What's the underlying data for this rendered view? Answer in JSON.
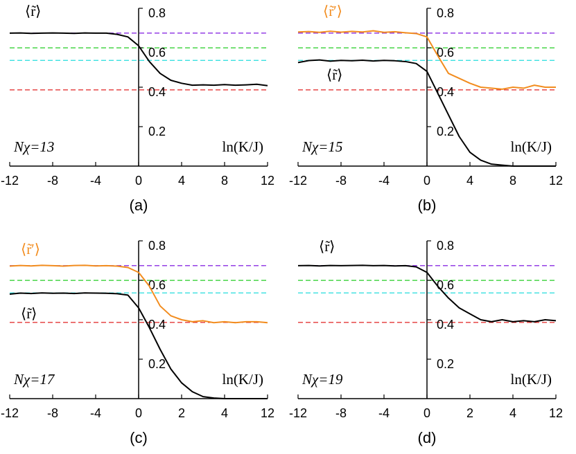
{
  "chart_data": [
    {
      "type": "line",
      "caption": "(a)",
      "annotation": "Nχ=13",
      "xlabel": "ln(K/J)",
      "xticks": [
        -12,
        -8,
        -4,
        0,
        4,
        8,
        12
      ],
      "xlim": [
        -12,
        12
      ],
      "ylim": [
        0,
        0.8
      ],
      "yticks": [
        0.2,
        0.4,
        0.6,
        0.8
      ],
      "reference_lines": [
        {
          "value": 0.6744,
          "color": "#8a2be2"
        },
        {
          "value": 0.5996,
          "color": "#22cc22"
        },
        {
          "value": 0.5359,
          "color": "#22dddd"
        },
        {
          "value": 0.3863,
          "color": "#e02020"
        }
      ],
      "x": [
        -12,
        -11,
        -10,
        -9,
        -8,
        -7,
        -6,
        -5,
        -4,
        -3,
        -2,
        -1,
        0,
        1,
        2,
        3,
        4,
        5,
        6,
        7,
        8,
        9,
        10,
        11,
        12
      ],
      "series": [
        {
          "name": "⟨r̃⟩",
          "color": "#000000",
          "values": [
            0.674,
            0.675,
            0.673,
            0.674,
            0.675,
            0.674,
            0.673,
            0.675,
            0.674,
            0.674,
            0.668,
            0.655,
            0.61,
            0.53,
            0.47,
            0.435,
            0.42,
            0.41,
            0.412,
            0.41,
            0.413,
            0.41,
            0.412,
            0.415,
            0.408
          ]
        }
      ]
    },
    {
      "type": "line",
      "caption": "(b)",
      "annotation": "Nχ=15",
      "xlabel": "ln(K/J)",
      "xticks": [
        -12,
        -8,
        -4,
        0,
        4,
        8,
        12
      ],
      "xlim": [
        -12,
        12
      ],
      "ylim": [
        0,
        0.8
      ],
      "yticks": [
        0.2,
        0.4,
        0.6,
        0.8
      ],
      "reference_lines": [
        {
          "value": 0.6744,
          "color": "#8a2be2"
        },
        {
          "value": 0.5996,
          "color": "#22cc22"
        },
        {
          "value": 0.5359,
          "color": "#22dddd"
        },
        {
          "value": 0.3863,
          "color": "#e02020"
        }
      ],
      "x": [
        -12,
        -11,
        -10,
        -9,
        -8,
        -7,
        -6,
        -5,
        -4,
        -3,
        -2,
        -1,
        0,
        1,
        2,
        3,
        4,
        5,
        6,
        7,
        8,
        9,
        10,
        11,
        12
      ],
      "series": [
        {
          "name": "⟨r̃′⟩",
          "color": "#f28c1e",
          "values": [
            0.68,
            0.682,
            0.678,
            0.684,
            0.679,
            0.683,
            0.68,
            0.686,
            0.678,
            0.681,
            0.676,
            0.672,
            0.655,
            0.56,
            0.47,
            0.445,
            0.42,
            0.4,
            0.395,
            0.39,
            0.4,
            0.395,
            0.41,
            0.4,
            0.4
          ]
        },
        {
          "name": "⟨r̃⟩",
          "color": "#000000",
          "values": [
            0.525,
            0.535,
            0.538,
            0.532,
            0.536,
            0.534,
            0.537,
            0.533,
            0.536,
            0.534,
            0.53,
            0.52,
            0.48,
            0.37,
            0.26,
            0.15,
            0.07,
            0.03,
            0.01,
            0.005,
            0,
            0,
            0,
            0,
            0
          ]
        }
      ]
    },
    {
      "type": "line",
      "caption": "(c)",
      "annotation": "Nχ=17",
      "xlabel": "ln(K/J)",
      "xticks": [
        -12,
        -8,
        -4,
        0,
        2,
        4,
        12
      ],
      "xlim": [
        -12,
        12
      ],
      "ylim": [
        0,
        0.8
      ],
      "yticks": [
        0.2,
        0.4,
        0.6,
        0.8
      ],
      "reference_lines": [
        {
          "value": 0.6744,
          "color": "#8a2be2"
        },
        {
          "value": 0.5996,
          "color": "#22cc22"
        },
        {
          "value": 0.5359,
          "color": "#22dddd"
        },
        {
          "value": 0.3863,
          "color": "#e02020"
        }
      ],
      "x": [
        -12,
        -11,
        -10,
        -9,
        -8,
        -7,
        -6,
        -5,
        -4,
        -3,
        -2,
        -1,
        0,
        0.5,
        1,
        1.5,
        2,
        2.5,
        3,
        3.5,
        4,
        6,
        8,
        10,
        12
      ],
      "series": [
        {
          "name": "⟨r̃′⟩",
          "color": "#f28c1e",
          "values": [
            0.672,
            0.675,
            0.673,
            0.676,
            0.674,
            0.672,
            0.675,
            0.676,
            0.673,
            0.674,
            0.672,
            0.665,
            0.64,
            0.57,
            0.47,
            0.42,
            0.4,
            0.39,
            0.395,
            0.385,
            0.39,
            0.385,
            0.39,
            0.39,
            0.385
          ]
        },
        {
          "name": "⟨r̃⟩",
          "color": "#000000",
          "values": [
            0.53,
            0.535,
            0.533,
            0.536,
            0.534,
            0.535,
            0.533,
            0.536,
            0.535,
            0.534,
            0.532,
            0.525,
            0.46,
            0.36,
            0.25,
            0.15,
            0.08,
            0.035,
            0.01,
            0.003,
            0,
            0,
            0,
            0,
            0
          ]
        }
      ]
    },
    {
      "type": "line",
      "caption": "(d)",
      "annotation": "Nχ=19",
      "xlabel": "ln(K/J)",
      "xticks": [
        -12,
        -8,
        -4,
        0,
        2,
        4,
        12
      ],
      "xlim": [
        -12,
        12
      ],
      "ylim": [
        0,
        0.8
      ],
      "yticks": [
        0.2,
        0.4,
        0.6,
        0.8
      ],
      "reference_lines": [
        {
          "value": 0.6744,
          "color": "#8a2be2"
        },
        {
          "value": 0.5996,
          "color": "#22cc22"
        },
        {
          "value": 0.5359,
          "color": "#22dddd"
        },
        {
          "value": 0.3863,
          "color": "#e02020"
        }
      ],
      "x": [
        -12,
        -11,
        -10,
        -9,
        -8,
        -7,
        -6,
        -5,
        -4,
        -3,
        -2,
        -1,
        0,
        0.5,
        1,
        1.5,
        2,
        2.5,
        3,
        3.5,
        4,
        6,
        8,
        10,
        12
      ],
      "series": [
        {
          "name": "⟨r̃⟩",
          "color": "#000000",
          "values": [
            0.674,
            0.675,
            0.673,
            0.675,
            0.674,
            0.675,
            0.676,
            0.674,
            0.675,
            0.673,
            0.674,
            0.668,
            0.64,
            0.57,
            0.51,
            0.46,
            0.43,
            0.4,
            0.39,
            0.4,
            0.39,
            0.395,
            0.39,
            0.4,
            0.395
          ]
        }
      ]
    }
  ]
}
